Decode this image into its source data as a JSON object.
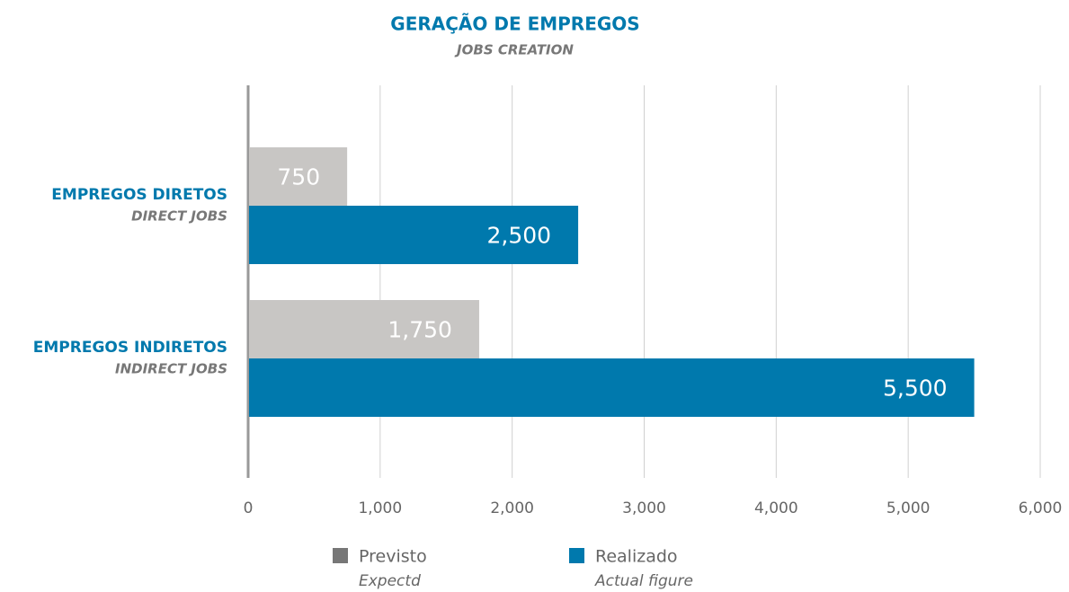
{
  "chart_data": {
    "type": "hbar",
    "title": "GERAÇÃO DE EMPREGOS",
    "subtitle": "JOBS CREATION",
    "categories": [
      "EMPREGOS DIRETOS",
      "EMPREGOS INDIRETOS"
    ],
    "category_subtitles": [
      "DIRECT JOBS",
      "INDIRECT JOBS"
    ],
    "series": [
      {
        "name": "Previsto",
        "subtitle": "Expectd",
        "color": "#c8c6c4",
        "values": [
          750,
          1750
        ],
        "value_labels": [
          "750",
          "1,750"
        ]
      },
      {
        "name": "Realizado",
        "subtitle": "Actual figure",
        "color": "#0079ad",
        "values": [
          2500,
          5500
        ],
        "value_labels": [
          "2,500",
          "5,500"
        ]
      }
    ],
    "xlim": [
      0,
      6000
    ],
    "xticks": [
      0,
      {
        "value": 1000,
        "label": "1,000"
      },
      {
        "value": 2000,
        "label": "2,000"
      },
      {
        "value": 3000,
        "label": "3,000"
      },
      {
        "value": 4000,
        "label": "4,000"
      },
      {
        "value": 5000,
        "label": "5,000"
      },
      {
        "value": 6000,
        "label": "6,000"
      }
    ],
    "grid": true,
    "legend": "bottom"
  }
}
